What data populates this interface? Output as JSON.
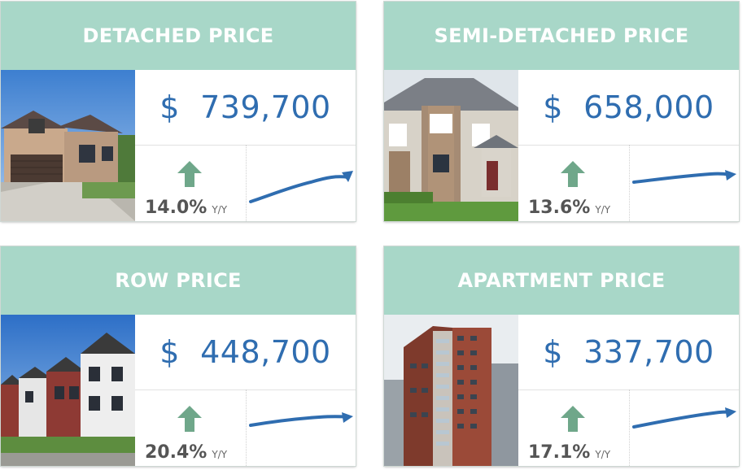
{
  "cards": [
    {
      "title": "DETACHED PRICE",
      "price": "$  739,700",
      "change": "14.0%",
      "change_unit": "Y/Y",
      "trend": "up",
      "photo": "detached-house"
    },
    {
      "title": "SEMI-DETACHED PRICE",
      "price": "$  658,000",
      "change": "13.6%",
      "change_unit": "Y/Y",
      "trend": "up",
      "photo": "semi-detached-house"
    },
    {
      "title": "ROW PRICE",
      "price": "$  448,700",
      "change": "20.4%",
      "change_unit": "Y/Y",
      "trend": "up",
      "photo": "row-houses"
    },
    {
      "title": "APARTMENT PRICE",
      "price": "$  337,700",
      "change": "17.1%",
      "change_unit": "Y/Y",
      "trend": "up",
      "photo": "apartment-tower"
    }
  ],
  "colors": {
    "header_bg": "#a8d7c8",
    "price_text": "#2f6db0",
    "arrow": "#6fa78a",
    "sparkline": "#2f6db0"
  }
}
